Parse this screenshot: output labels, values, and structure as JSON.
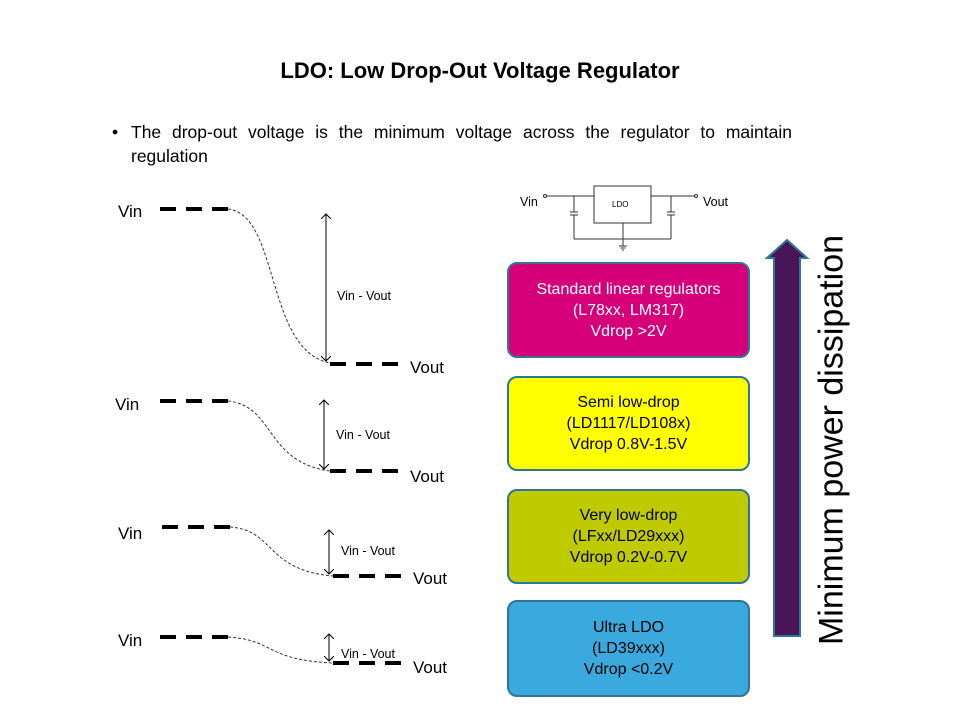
{
  "title": "LDO: Low Drop-Out Voltage Regulator",
  "bullet": "The drop-out voltage is the minimum  voltage across the regulator to maintain regulation",
  "circuit": {
    "vin": "Vin",
    "vout": "Vout",
    "block": "LDO"
  },
  "waveforms": [
    {
      "vin": "Vin",
      "vout": "Vout",
      "delta": "Vin - Vout"
    },
    {
      "vin": "Vin",
      "vout": "Vout",
      "delta": "Vin - Vout"
    },
    {
      "vin": "Vin",
      "vout": "Vout",
      "delta": "Vin - Vout"
    },
    {
      "vin": "Vin",
      "vout": "Vout",
      "delta": "Vin - Vout"
    }
  ],
  "categories": [
    {
      "line1": "Standard linear regulators",
      "line2": "(L78xx, LM317)",
      "line3": "Vdrop >2V",
      "color": "#d6007b",
      "text_color": "#ffffff"
    },
    {
      "line1": "Semi low-drop",
      "line2": "(LD1117/LD108x)",
      "line3": "Vdrop 0.8V-1.5V",
      "color": "#ffff00",
      "text_color": "#000000"
    },
    {
      "line1": "Very low-drop",
      "line2": "(LFxx/LD29xxx)",
      "line3": "Vdrop 0.2V-0.7V",
      "color": "#bfcb00",
      "text_color": "#000000"
    },
    {
      "line1": "Ultra LDO",
      "line2": "(LD39xxx)",
      "line3": "Vdrop <0.2V",
      "color": "#3aa9dd",
      "text_color": "#000000"
    }
  ],
  "arrow_label": "Minimum power dissipation",
  "arrow_color": "#4a1459"
}
